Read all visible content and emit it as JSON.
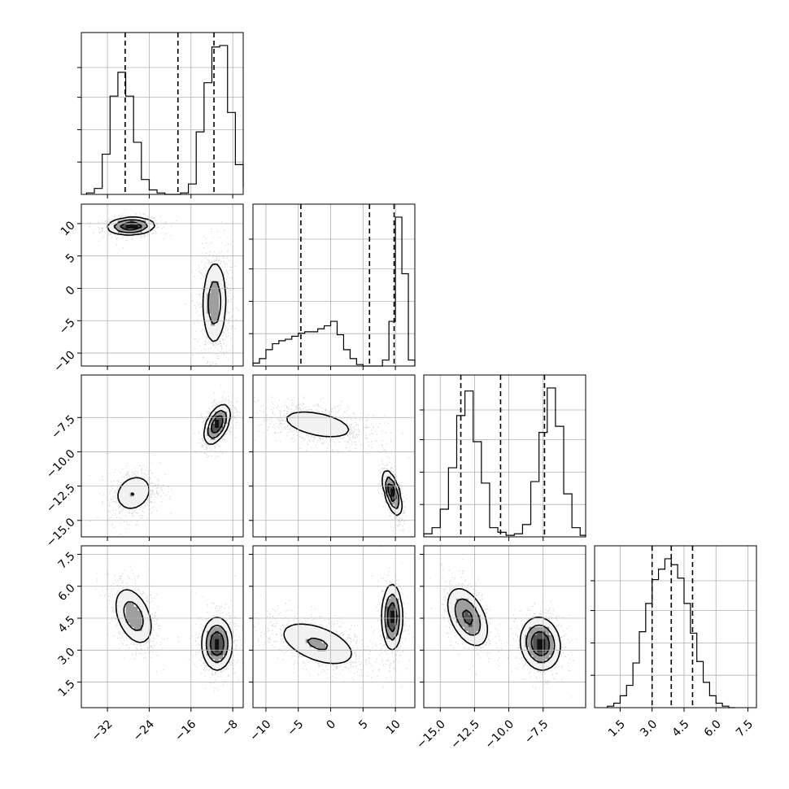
{
  "chart_data": {
    "type": "corner",
    "grid": true,
    "parameters": [
      {
        "range": [
          -37,
          -6
        ],
        "ticks": [
          -32,
          -24,
          -16,
          -8
        ],
        "tick_labels": [
          "−32",
          "−24",
          "−16",
          "−8"
        ],
        "quantiles": [
          -28.6,
          -18.5,
          -11.6
        ],
        "modes": [
          {
            "mu": -27.3,
            "sd": 1.9,
            "w": 0.38
          },
          {
            "mu": -11.5,
            "sd": 1.5,
            "w": 0.62
          }
        ],
        "hist": {
          "bins": [
            -36.0,
            -34.5,
            -33.0,
            -31.5,
            -30.0,
            -28.5,
            -27.0,
            -25.5,
            -24.0,
            -22.5,
            -21.0,
            -19.5,
            -18.0,
            -16.5,
            -15.0,
            -13.5,
            -12.0,
            -10.5,
            -9.0,
            -7.5,
            -6.0
          ],
          "counts": [
            0.01,
            0.04,
            0.27,
            0.66,
            0.82,
            0.66,
            0.35,
            0.1,
            0.03,
            0.01,
            0.0,
            0.0,
            0.01,
            0.07,
            0.42,
            0.75,
            0.99,
            1.0,
            0.55,
            0.2,
            0.05
          ]
        }
      },
      {
        "range": [
          -12,
          13
        ],
        "ticks": [
          10,
          5,
          0,
          -5,
          -10
        ],
        "tick_labels": [
          "10",
          "5",
          "0",
          "−5",
          "−10"
        ],
        "quantiles": [
          -4.6,
          6.0,
          9.8
        ],
        "modes": [
          {
            "mu": -2.0,
            "sd": 3.4,
            "w": 0.62
          },
          {
            "mu": 9.5,
            "sd": 0.7,
            "w": 0.38
          }
        ],
        "hist": {
          "bins": [
            -12.0,
            -11.0,
            -10.0,
            -9.0,
            -8.0,
            -7.0,
            -6.0,
            -5.0,
            -4.0,
            -3.0,
            -2.0,
            -1.0,
            0.0,
            1.0,
            2.0,
            3.0,
            4.0,
            5.0,
            6.0,
            7.0,
            8.0,
            9.0,
            10.0,
            11.0,
            12.0,
            13.0
          ],
          "counts": [
            0.02,
            0.05,
            0.11,
            0.15,
            0.17,
            0.18,
            0.2,
            0.22,
            0.23,
            0.23,
            0.25,
            0.27,
            0.3,
            0.21,
            0.11,
            0.05,
            0.01,
            0.0,
            0.0,
            0.0,
            0.04,
            0.3,
            1.0,
            0.62,
            0.04
          ]
        }
      },
      {
        "range": [
          -16.2,
          -4.4
        ],
        "ticks": [
          -7.5,
          -10.0,
          -12.5,
          -15.0
        ],
        "tick_labels": [
          "−7.5",
          "−10.0",
          "−12.5",
          "−15.0"
        ],
        "quantiles": [
          -13.5,
          -10.6,
          -7.4
        ],
        "modes": [
          {
            "mu": -13.0,
            "sd": 0.7,
            "w": 0.42
          },
          {
            "mu": -7.7,
            "sd": 0.65,
            "w": 0.58
          }
        ],
        "hist": {
          "bins": [
            -16.2,
            -15.6,
            -15.0,
            -14.4,
            -13.8,
            -13.2,
            -12.6,
            -12.0,
            -11.4,
            -10.8,
            -10.2,
            -9.6,
            -9.0,
            -8.4,
            -7.8,
            -7.2,
            -6.6,
            -6.0,
            -5.4,
            -4.8,
            -4.4
          ],
          "counts": [
            0.02,
            0.06,
            0.18,
            0.45,
            0.79,
            0.95,
            0.62,
            0.35,
            0.06,
            0.03,
            0.01,
            0.02,
            0.08,
            0.36,
            0.68,
            0.97,
            0.72,
            0.28,
            0.06,
            0.01
          ]
        }
      },
      {
        "range": [
          0.3,
          7.9
        ],
        "ticks": [
          1.5,
          3.0,
          4.5,
          6.0,
          7.5
        ],
        "tick_labels": [
          "1.5",
          "3.0",
          "4.5",
          "6.0",
          "7.5"
        ],
        "quantiles": [
          3.0,
          3.9,
          4.9
        ],
        "modes": [
          {
            "mu": 4.55,
            "sd": 0.7,
            "w": 0.45
          },
          {
            "mu": 3.35,
            "sd": 0.6,
            "w": 0.55
          }
        ],
        "hist": {
          "bins": [
            0.9,
            1.2,
            1.5,
            1.8,
            2.1,
            2.4,
            2.7,
            3.0,
            3.3,
            3.6,
            3.9,
            4.2,
            4.5,
            4.8,
            5.1,
            5.4,
            5.7,
            6.0,
            6.3,
            6.6,
            6.9
          ],
          "counts": [
            0.01,
            0.03,
            0.08,
            0.15,
            0.3,
            0.51,
            0.7,
            0.86,
            0.93,
            1.0,
            0.96,
            0.87,
            0.7,
            0.5,
            0.31,
            0.17,
            0.08,
            0.03,
            0.01,
            0.0
          ]
        }
      }
    ],
    "panels_2d": [
      {
        "row": 1,
        "col": 0,
        "clusters": [
          {
            "center": [
              -27.5,
              9.6
            ],
            "sd": [
              2.2,
              0.65
            ],
            "rho": 0.1,
            "weight": 0.38
          },
          {
            "center": [
              -11.5,
              -2.2
            ],
            "sd": [
              1.2,
              3.4
            ],
            "rho": 0.05,
            "weight": 0.62
          }
        ]
      },
      {
        "row": 2,
        "col": 0,
        "clusters": [
          {
            "center": [
              -27.0,
              -13.0
            ],
            "sd": [
              2.0,
              0.75
            ],
            "rho": 0.2,
            "weight": 0.42
          },
          {
            "center": [
              -11.0,
              -8.0
            ],
            "sd": [
              1.2,
              0.7
            ],
            "rho": 0.5,
            "weight": 0.58
          }
        ]
      },
      {
        "row": 2,
        "col": 1,
        "clusters": [
          {
            "center": [
              -2.0,
              -8.0
            ],
            "sd": [
              3.5,
              0.65
            ],
            "rho": -0.45,
            "weight": 0.58
          },
          {
            "center": [
              9.5,
              -13.0
            ],
            "sd": [
              0.7,
              0.8
            ],
            "rho": -0.6,
            "weight": 0.42
          }
        ]
      },
      {
        "row": 3,
        "col": 0,
        "clusters": [
          {
            "center": [
              -27.0,
              4.6
            ],
            "sd": [
              1.9,
              0.7
            ],
            "rho": -0.4,
            "weight": 0.45
          },
          {
            "center": [
              -11.0,
              3.3
            ],
            "sd": [
              1.4,
              0.6
            ],
            "rho": 0.0,
            "weight": 0.55
          }
        ]
      },
      {
        "row": 3,
        "col": 1,
        "clusters": [
          {
            "center": [
              -2.0,
              3.3
            ],
            "sd": [
              3.4,
              0.6
            ],
            "rho": -0.5,
            "weight": 0.55
          },
          {
            "center": [
              9.5,
              4.55
            ],
            "sd": [
              0.75,
              0.75
            ],
            "rho": 0.0,
            "weight": 0.45
          }
        ]
      },
      {
        "row": 3,
        "col": 2,
        "clusters": [
          {
            "center": [
              -13.0,
              4.55
            ],
            "sd": [
              0.75,
              0.7
            ],
            "rho": -0.45,
            "weight": 0.45
          },
          {
            "center": [
              -7.7,
              3.3
            ],
            "sd": [
              0.7,
              0.6
            ],
            "rho": -0.1,
            "weight": 0.55
          }
        ]
      }
    ]
  }
}
